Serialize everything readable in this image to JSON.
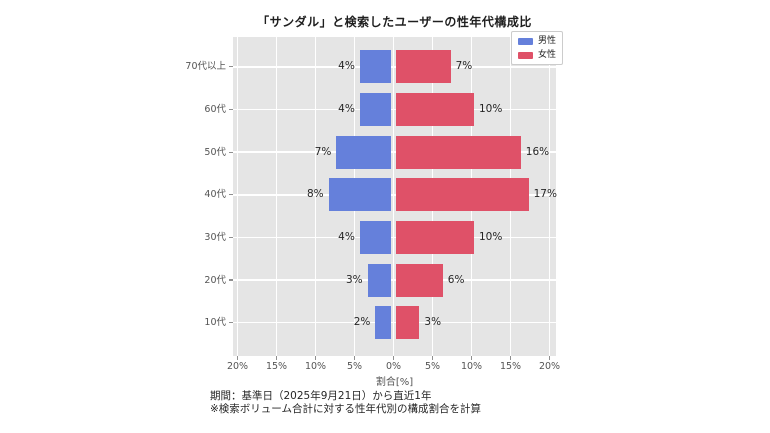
{
  "title": "「サンダル」と検索したユーザーの性年代構成比",
  "legend": {
    "items": [
      {
        "label": "男性",
        "color": "#6580DB"
      },
      {
        "label": "女性",
        "color": "#DF5168"
      }
    ]
  },
  "axes": {
    "xlabel": "割合[%]",
    "x_tick_labels": [
      "20%",
      "15%",
      "10%",
      "5%",
      "0%",
      "5%",
      "10%",
      "15%",
      "20%"
    ],
    "y_tick_labels": [
      "70代以上",
      "60代",
      "50代",
      "40代",
      "30代",
      "20代",
      "10代"
    ]
  },
  "footnotes": {
    "line1": "期間：基準日（2025年9月21日）から直近1年",
    "line2": "※検索ボリューム合計に対する性年代別の構成割合を計算"
  },
  "colors": {
    "male": "#6580DB",
    "female": "#DF5168",
    "plot_background": "#E5E5E5",
    "gridline": "#FFFFFF",
    "tick_text": "#555555",
    "text": "#262626"
  },
  "chart_data": {
    "type": "bar",
    "subtype": "population-pyramid",
    "orientation": "horizontal",
    "title": "「サンダル」と検索したユーザーの性年代構成比",
    "xlabel": "割合[%]",
    "categories": [
      "70代以上",
      "60代",
      "50代",
      "40代",
      "30代",
      "20代",
      "10代"
    ],
    "series": [
      {
        "name": "男性",
        "side": "left",
        "color": "#6580DB",
        "values": [
          4,
          4,
          7,
          8,
          4,
          3,
          2
        ],
        "labels": [
          "4%",
          "4%",
          "7%",
          "8%",
          "4%",
          "3%",
          "2%"
        ]
      },
      {
        "name": "女性",
        "side": "right",
        "color": "#DF5168",
        "values": [
          7,
          10,
          16,
          17,
          10,
          6,
          3
        ],
        "labels": [
          "7%",
          "10%",
          "16%",
          "17%",
          "10%",
          "6%",
          "3%"
        ]
      }
    ],
    "xlim_percent": [
      -20,
      20
    ],
    "x_tick_step_percent": 5,
    "grid": true,
    "legend_position": "upper-right"
  }
}
